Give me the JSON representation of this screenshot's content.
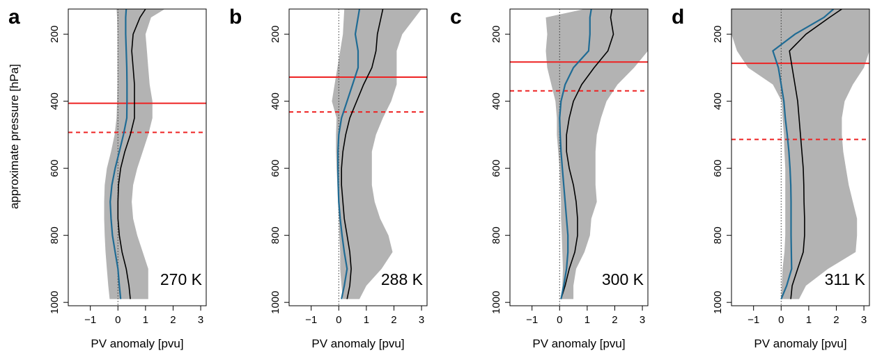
{
  "chart_data": [
    {
      "type": "line",
      "panel_label": "a",
      "annotation": "270 K",
      "xlabel": "PV anomaly [pvu]",
      "ylabel": "approximate pressure [hPa]",
      "xlim": [
        -1.8,
        3.2
      ],
      "ylim": [
        1010,
        125
      ],
      "y_inverted": true,
      "xticks": [
        "−1",
        "0",
        "1",
        "2",
        "3"
      ],
      "xtick_values": [
        -1,
        0,
        1,
        2,
        3
      ],
      "yticks": [
        "200",
        "400",
        "600",
        "800",
        "1000"
      ],
      "ytick_values": [
        200,
        400,
        600,
        800,
        1000
      ],
      "reference_lines": {
        "solid_red_pressure": 406,
        "dashed_red_pressure": 493,
        "dotted_zero_x": 0
      },
      "colors": {
        "black_series": "#000000",
        "blue_series": "#1f6b94",
        "band": "#b3b3b3",
        "red_lines": "#ee2222"
      },
      "band": {
        "p": [
          125,
          150,
          200,
          250,
          300,
          350,
          400,
          450,
          500,
          550,
          600,
          650,
          700,
          750,
          800,
          850,
          900,
          950,
          990
        ],
        "lower": [
          -0.05,
          -0.03,
          -0.02,
          -0.02,
          -0.02,
          -0.02,
          -0.03,
          -0.05,
          -0.12,
          -0.25,
          -0.4,
          -0.48,
          -0.5,
          -0.5,
          -0.48,
          -0.45,
          -0.4,
          -0.35,
          -0.3
        ],
        "upper": [
          1.7,
          1.2,
          1.0,
          1.05,
          1.1,
          1.15,
          1.25,
          1.25,
          1.1,
          0.9,
          0.7,
          0.55,
          0.5,
          0.55,
          0.7,
          0.9,
          1.1,
          1.1,
          1.1
        ]
      },
      "series": [
        {
          "color": "black",
          "p": [
            125,
            150,
            200,
            250,
            300,
            350,
            400,
            450,
            500,
            550,
            600,
            650,
            700,
            750,
            800,
            850,
            900,
            950,
            990
          ],
          "x": [
            1.0,
            0.8,
            0.55,
            0.5,
            0.55,
            0.6,
            0.6,
            0.6,
            0.45,
            0.25,
            0.1,
            0.02,
            0.0,
            0.0,
            0.05,
            0.15,
            0.3,
            0.4,
            0.45
          ]
        },
        {
          "color": "blue",
          "p": [
            125,
            150,
            200,
            250,
            300,
            350,
            400,
            450,
            500,
            550,
            600,
            650,
            700,
            750,
            800,
            850,
            900,
            950,
            990
          ],
          "x": [
            0.3,
            0.28,
            0.28,
            0.3,
            0.32,
            0.33,
            0.33,
            0.32,
            0.2,
            0.05,
            -0.1,
            -0.22,
            -0.28,
            -0.25,
            -0.2,
            -0.1,
            0.0,
            0.05,
            0.1
          ]
        }
      ]
    },
    {
      "type": "line",
      "panel_label": "b",
      "annotation": "288 K",
      "xlabel": "PV anomaly [pvu]",
      "ylabel": "",
      "xlim": [
        -1.8,
        3.2
      ],
      "ylim": [
        1010,
        125
      ],
      "y_inverted": true,
      "xticks": [
        "−1",
        "0",
        "1",
        "2",
        "3"
      ],
      "xtick_values": [
        -1,
        0,
        1,
        2,
        3
      ],
      "yticks": [
        "200",
        "400",
        "600",
        "800",
        "1000"
      ],
      "ytick_values": [
        200,
        400,
        600,
        800,
        1000
      ],
      "reference_lines": {
        "solid_red_pressure": 328,
        "dashed_red_pressure": 432,
        "dotted_zero_x": 0
      },
      "colors": {
        "black_series": "#000000",
        "blue_series": "#1f6b94",
        "band": "#b3b3b3",
        "red_lines": "#ee2222"
      },
      "band": {
        "p": [
          125,
          200,
          250,
          300,
          350,
          400,
          450,
          500,
          550,
          600,
          650,
          700,
          750,
          800,
          850,
          900,
          950,
          990
        ],
        "lower": [
          0.2,
          0.15,
          0.05,
          -0.05,
          -0.15,
          -0.25,
          -0.08,
          -0.1,
          -0.1,
          -0.08,
          -0.05,
          -0.03,
          0.0,
          0.02,
          0.05,
          0.05,
          0.1,
          0.15
        ],
        "upper": [
          3.0,
          2.3,
          2.1,
          2.1,
          2.1,
          1.9,
          1.6,
          1.35,
          1.2,
          1.2,
          1.2,
          1.3,
          1.5,
          1.8,
          1.95,
          1.55,
          1.0,
          0.75
        ]
      },
      "series": [
        {
          "color": "black",
          "p": [
            125,
            200,
            250,
            300,
            350,
            400,
            450,
            500,
            550,
            600,
            650,
            700,
            750,
            800,
            850,
            900,
            950,
            990
          ],
          "x": [
            1.6,
            1.4,
            1.35,
            1.2,
            0.9,
            0.65,
            0.4,
            0.25,
            0.15,
            0.1,
            0.1,
            0.15,
            0.2,
            0.3,
            0.4,
            0.45,
            0.4,
            0.3
          ]
        },
        {
          "color": "blue",
          "p": [
            125,
            200,
            250,
            300,
            350,
            400,
            450,
            500,
            550,
            600,
            650,
            700,
            750,
            800,
            850,
            900,
            950,
            990
          ],
          "x": [
            0.75,
            0.6,
            0.7,
            0.7,
            0.5,
            0.3,
            0.1,
            0.0,
            -0.03,
            -0.03,
            -0.02,
            0.0,
            0.05,
            0.12,
            0.2,
            0.3,
            0.2,
            0.1
          ]
        }
      ]
    },
    {
      "type": "line",
      "panel_label": "c",
      "annotation": "300 K",
      "xlabel": "PV anomaly [pvu]",
      "ylabel": "",
      "xlim": [
        -1.8,
        3.2
      ],
      "ylim": [
        1010,
        125
      ],
      "y_inverted": true,
      "xticks": [
        "−1",
        "0",
        "1",
        "2",
        "3"
      ],
      "xtick_values": [
        -1,
        0,
        1,
        2,
        3
      ],
      "yticks": [
        "200",
        "400",
        "600",
        "800",
        "1000"
      ],
      "ytick_values": [
        200,
        400,
        600,
        800,
        1000
      ],
      "reference_lines": {
        "solid_red_pressure": 283,
        "dashed_red_pressure": 369,
        "dotted_zero_x": 0
      },
      "colors": {
        "black_series": "#000000",
        "blue_series": "#1f6b94",
        "band": "#b3b3b3",
        "red_lines": "#ee2222"
      },
      "band": {
        "p": [
          125,
          150,
          200,
          250,
          300,
          350,
          400,
          450,
          500,
          550,
          600,
          650,
          700,
          750,
          800,
          850,
          900,
          950,
          990
        ],
        "lower": [
          0.9,
          -0.5,
          -0.45,
          -0.5,
          -0.45,
          -0.3,
          -0.15,
          -0.1,
          -0.1,
          -0.05,
          0.0,
          0.02,
          0.05,
          0.05,
          0.08,
          0.1,
          0.12,
          0.1,
          0.05
        ],
        "upper": [
          3.2,
          3.2,
          3.2,
          3.2,
          2.7,
          2.1,
          1.7,
          1.5,
          1.35,
          1.3,
          1.3,
          1.3,
          1.35,
          1.15,
          1.1,
          0.9,
          0.6,
          0.5,
          0.5
        ]
      },
      "series": [
        {
          "color": "black",
          "p": [
            125,
            150,
            200,
            250,
            300,
            350,
            400,
            450,
            500,
            550,
            600,
            650,
            700,
            750,
            800,
            850,
            900,
            950,
            990
          ],
          "x": [
            1.9,
            1.85,
            1.95,
            1.75,
            1.25,
            0.8,
            0.5,
            0.35,
            0.25,
            0.25,
            0.35,
            0.5,
            0.6,
            0.65,
            0.65,
            0.55,
            0.35,
            0.2,
            0.05
          ]
        },
        {
          "color": "blue",
          "p": [
            125,
            150,
            200,
            250,
            300,
            350,
            400,
            450,
            500,
            550,
            600,
            650,
            700,
            750,
            800,
            850,
            900,
            950,
            990
          ],
          "x": [
            1.15,
            1.1,
            1.1,
            1.05,
            0.5,
            0.2,
            0.05,
            0.0,
            0.02,
            0.05,
            0.1,
            0.15,
            0.2,
            0.25,
            0.3,
            0.3,
            0.25,
            0.15,
            0.05
          ]
        }
      ]
    },
    {
      "type": "line",
      "panel_label": "d",
      "annotation": "311 K",
      "xlabel": "PV anomaly [pvu]",
      "ylabel": "",
      "xlim": [
        -1.8,
        3.2
      ],
      "ylim": [
        1010,
        125
      ],
      "y_inverted": true,
      "xticks": [
        "−1",
        "0",
        "1",
        "2",
        "3"
      ],
      "xtick_values": [
        -1,
        0,
        1,
        2,
        3
      ],
      "yticks": [
        "200",
        "400",
        "600",
        "800",
        "1000"
      ],
      "ytick_values": [
        200,
        400,
        600,
        800,
        1000
      ],
      "reference_lines": {
        "solid_red_pressure": 287,
        "dashed_red_pressure": 514,
        "dotted_zero_x": 0
      },
      "colors": {
        "black_series": "#000000",
        "blue_series": "#1f6b94",
        "band": "#b3b3b3",
        "red_lines": "#ee2222"
      },
      "band": {
        "p": [
          125,
          150,
          200,
          250,
          300,
          350,
          400,
          450,
          500,
          550,
          600,
          650,
          700,
          750,
          800,
          850,
          900,
          950,
          990
        ],
        "lower": [
          -1.8,
          -1.8,
          -1.8,
          -1.6,
          -1.2,
          -0.3,
          0.02,
          0.05,
          0.1,
          0.12,
          0.15,
          0.15,
          0.15,
          0.15,
          0.15,
          0.12,
          0.05,
          0.02,
          0.0
        ],
        "upper": [
          3.2,
          3.2,
          3.2,
          3.2,
          3.0,
          2.6,
          2.3,
          2.2,
          2.2,
          2.25,
          2.35,
          2.45,
          2.6,
          2.75,
          2.75,
          2.7,
          1.7,
          0.9,
          0.65
        ]
      },
      "series": [
        {
          "color": "black",
          "p": [
            125,
            150,
            200,
            250,
            300,
            350,
            400,
            450,
            500,
            550,
            600,
            650,
            700,
            750,
            800,
            850,
            900,
            950,
            990
          ],
          "x": [
            2.2,
            1.75,
            0.9,
            0.3,
            0.4,
            0.5,
            0.6,
            0.65,
            0.7,
            0.75,
            0.8,
            0.82,
            0.83,
            0.85,
            0.85,
            0.8,
            0.6,
            0.4,
            0.35
          ]
        },
        {
          "color": "blue",
          "p": [
            125,
            150,
            200,
            250,
            300,
            350,
            400,
            450,
            500,
            550,
            600,
            650,
            700,
            750,
            800,
            850,
            900,
            950,
            990
          ],
          "x": [
            1.9,
            1.55,
            0.5,
            -0.3,
            -0.1,
            0.0,
            0.1,
            0.15,
            0.22,
            0.28,
            0.32,
            0.35,
            0.36,
            0.36,
            0.36,
            0.37,
            0.38,
            0.2,
            0.0
          ]
        }
      ]
    }
  ]
}
